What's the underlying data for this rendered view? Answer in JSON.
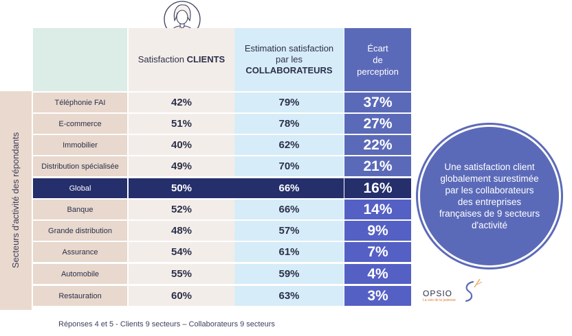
{
  "side_label": "Secteurs d'activité des répondants",
  "headers": {
    "col1_prefix": "Satisfaction ",
    "col1_bold": "CLIENTS",
    "col2_line1": "Estimation satisfaction",
    "col2_prefix": "par les ",
    "col2_bold": "COLLABORATEURS",
    "col3_line1": "Écart",
    "col3_line2": "de",
    "col3_line3": "perception"
  },
  "rows": [
    {
      "label": "Téléphonie FAI",
      "clients": "42%",
      "collab": "79%",
      "ecart": "37%",
      "color": "#5b6ab8"
    },
    {
      "label": "E-commerce",
      "clients": "51%",
      "collab": "78%",
      "ecart": "27%",
      "color": "#5b6ab8"
    },
    {
      "label": "Immobilier",
      "clients": "40%",
      "collab": "62%",
      "ecart": "22%",
      "color": "#5b6ab8"
    },
    {
      "label": "Distribution spécialisée",
      "clients": "49%",
      "collab": "70%",
      "ecart": "21%",
      "color": "#5b6ab8"
    },
    {
      "label": "Global",
      "clients": "50%",
      "collab": "66%",
      "ecart": "16%",
      "color": "#252f6b"
    },
    {
      "label": "Banque",
      "clients": "52%",
      "collab": "66%",
      "ecart": "14%",
      "color": "#5560c4"
    },
    {
      "label": "Grande distribution",
      "clients": "48%",
      "collab": "57%",
      "ecart": "9%",
      "color": "#5560c4"
    },
    {
      "label": "Assurance",
      "clients": "54%",
      "collab": "61%",
      "ecart": "7%",
      "color": "#5560c4"
    },
    {
      "label": "Automobile",
      "clients": "55%",
      "collab": "59%",
      "ecart": "4%",
      "color": "#5560c4"
    },
    {
      "label": "Restauration",
      "clients": "60%",
      "collab": "63%",
      "ecart": "3%",
      "color": "#5560c4"
    }
  ],
  "callout": "Une satisfaction client globalement surestimée par les collaborateurs des entreprises françaises de 9 secteurs d'activité",
  "footer": "Réponses 4 et 5 - Clients 9 secteurs – Collaborateurs 9 secteurs",
  "logo": {
    "name": "OPSIO",
    "tagline": "La voix de la justesse"
  },
  "icons": [
    "woman-avatar-icon",
    "opsio-logo-icon"
  ]
}
